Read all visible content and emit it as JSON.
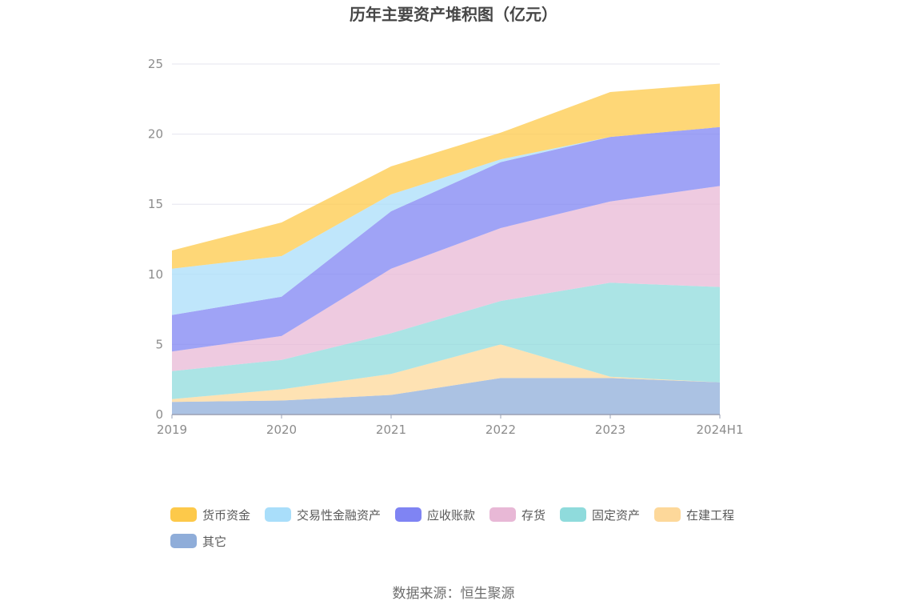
{
  "chart_data": {
    "type": "area",
    "stacked": true,
    "title": "历年主要资产堆积图（亿元）",
    "source": "数据来源：恒生聚源",
    "xlabel": "",
    "ylabel": "",
    "ylim": [
      0,
      25
    ],
    "yticks": [
      "0",
      "5",
      "10",
      "15",
      "20",
      "25"
    ],
    "categories": [
      "2019",
      "2020",
      "2021",
      "2022",
      "2023",
      "2024H1"
    ],
    "grid": true,
    "legend_position": "bottom",
    "series": [
      {
        "name": "其它",
        "color": "#8fadd9",
        "values": [
          0.9,
          1.0,
          1.4,
          2.6,
          2.6,
          2.3
        ]
      },
      {
        "name": "在建工程",
        "color": "#fdd89a",
        "values": [
          0.2,
          0.8,
          1.5,
          2.4,
          0.1,
          0.0
        ]
      },
      {
        "name": "固定资产",
        "color": "#8fdbdc",
        "values": [
          2.0,
          2.1,
          2.9,
          3.1,
          6.7,
          6.8
        ]
      },
      {
        "name": "存货",
        "color": "#e8b8d6",
        "values": [
          1.4,
          1.7,
          4.6,
          5.2,
          5.8,
          7.2
        ]
      },
      {
        "name": "应收账款",
        "color": "#7f84f3",
        "values": [
          2.6,
          2.8,
          4.1,
          4.7,
          4.6,
          4.2
        ]
      },
      {
        "name": "交易性金融资产",
        "color": "#a9defa",
        "values": [
          3.3,
          2.9,
          1.2,
          0.2,
          0.0,
          0.0
        ]
      },
      {
        "name": "货币资金",
        "color": "#fdc94a",
        "values": [
          1.3,
          2.4,
          2.0,
          1.9,
          3.2,
          3.1
        ]
      }
    ],
    "legend_order": [
      "货币资金",
      "交易性金融资产",
      "应收账款",
      "存货",
      "固定资产",
      "在建工程",
      "其它"
    ]
  }
}
